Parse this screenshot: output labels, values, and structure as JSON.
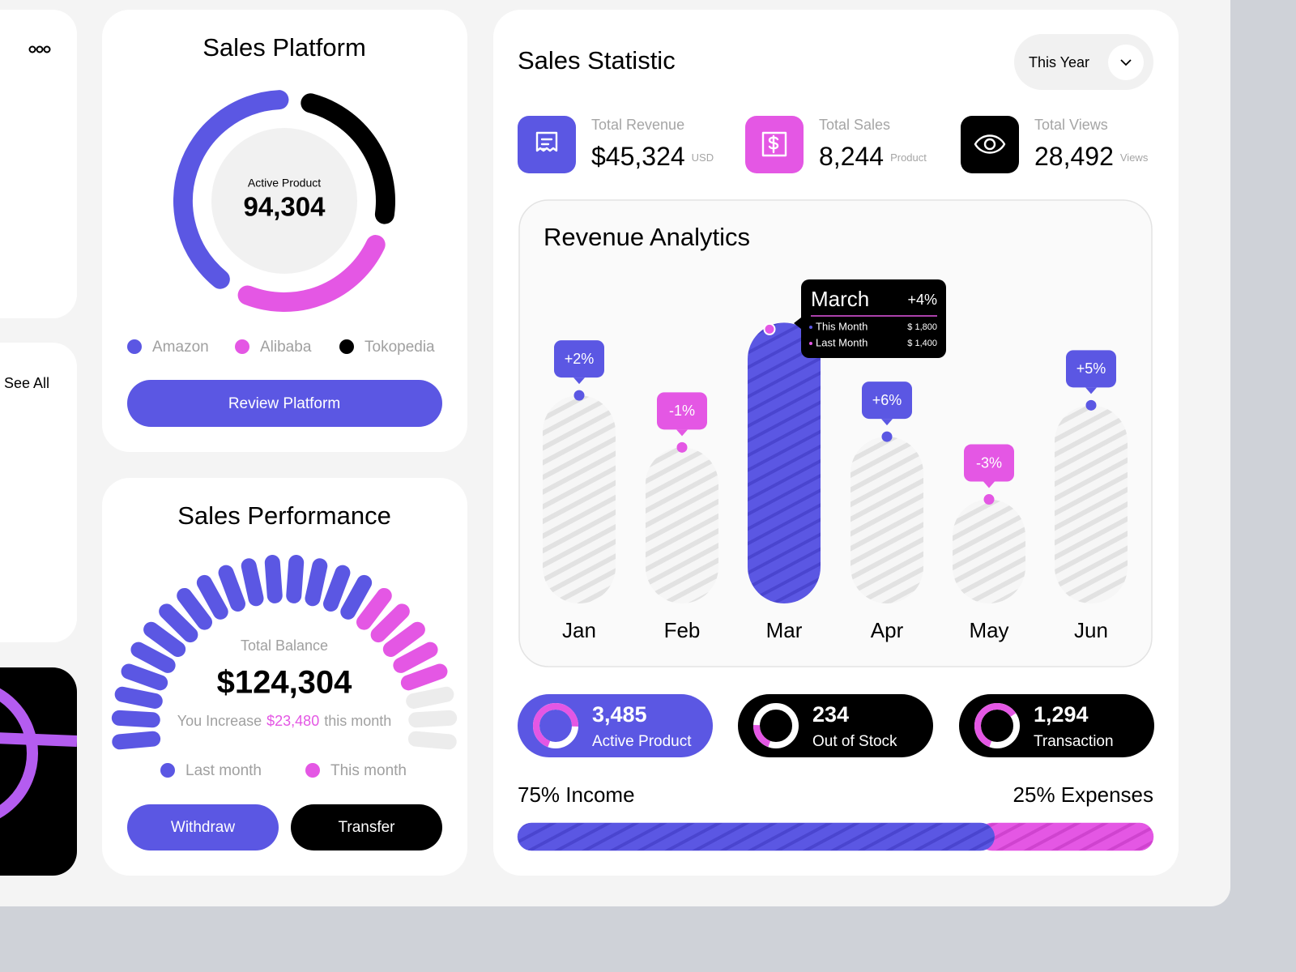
{
  "sidebar": {
    "see_all": "See All"
  },
  "sales_platform": {
    "title": "Sales Platform",
    "center_label": "Active Product",
    "center_value": "94,304",
    "segments": [
      {
        "name": "Amazon",
        "color": "#5b57e3",
        "value": 45
      },
      {
        "name": "Alibaba",
        "color": "#e457e4",
        "value": 28
      },
      {
        "name": "Tokopedia",
        "color": "#000000",
        "value": 27
      }
    ],
    "button": "Review Platform"
  },
  "sales_performance": {
    "title": "Sales Performance",
    "label": "Total Balance",
    "value": "$124,304",
    "note": {
      "prefix": "You Increase",
      "amount": "$23,480",
      "suffix": "this month"
    },
    "max": 24,
    "series": [
      {
        "name": "Last month",
        "color": "#5b57e3",
        "value": 16
      },
      {
        "name": "This month",
        "color": "#e457e4",
        "value": 5
      }
    ],
    "buttons": [
      "Withdraw",
      "Transfer"
    ]
  },
  "sales_statistic": {
    "title": "Sales Statistic",
    "period": "This Year",
    "stats": [
      {
        "label": "Total Revenue",
        "value": "$45,324",
        "unit": "USD",
        "color": "#5b57e3"
      },
      {
        "label": "Total Sales",
        "value": "8,244",
        "unit": "Product",
        "color": "#e457e4"
      },
      {
        "label": "Total Views",
        "value": "28,492",
        "unit": "Views",
        "color": "#000000"
      }
    ]
  },
  "revenue_analytics": {
    "type": "bar",
    "title": "Revenue Analytics",
    "categories": [
      "Jan",
      "Feb",
      "Mar",
      "Apr",
      "May",
      "Jun"
    ],
    "values": [
      252,
      189,
      340,
      202,
      126,
      240
    ],
    "ylim": [
      0,
      360
    ],
    "changes": [
      "+2%",
      "-1%",
      "+4%",
      "+6%",
      "-3%",
      "+5%"
    ],
    "active": "Mar",
    "tooltip": {
      "title": "March",
      "change": "+4%",
      "rows": [
        {
          "name": "This Month",
          "value": "$ 1,800"
        },
        {
          "name": "Last Month",
          "value": "$ 1,400"
        }
      ]
    }
  },
  "summary": [
    {
      "value": "3,485",
      "label": "Active Product",
      "color": "#5b57e3"
    },
    {
      "value": "234",
      "label": "Out of Stock",
      "color": "#000000"
    },
    {
      "value": "1,294",
      "label": "Transaction",
      "color": "#000000"
    }
  ],
  "balance": {
    "income": {
      "value": 75,
      "label": "75% Income",
      "color": "#5b57e3"
    },
    "expenses": {
      "value": 25,
      "label": "25% Expenses",
      "color": "#e457e4"
    }
  }
}
